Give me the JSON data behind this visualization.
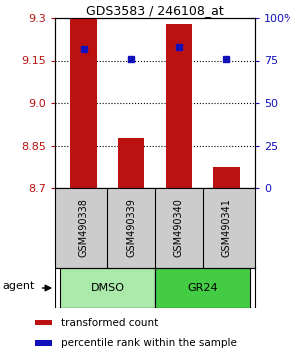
{
  "title": "GDS3583 / 246108_at",
  "samples": [
    "GSM490338",
    "GSM490339",
    "GSM490340",
    "GSM490341"
  ],
  "groups": [
    "DMSO",
    "DMSO",
    "GR24",
    "GR24"
  ],
  "group_labels": [
    "DMSO",
    "GR24"
  ],
  "group_colors": [
    "#aaeaaa",
    "#44cc44"
  ],
  "bar_values": [
    9.295,
    8.875,
    9.28,
    8.775
  ],
  "percentile_values": [
    82,
    76,
    83,
    76
  ],
  "y_min": 8.7,
  "y_max": 9.3,
  "y_ticks": [
    8.7,
    8.85,
    9.0,
    9.15,
    9.3
  ],
  "y2_ticks": [
    0,
    25,
    50,
    75,
    100
  ],
  "bar_color": "#bb1111",
  "percentile_color": "#1111bb",
  "grid_color": "#666666",
  "bg_color": "#ffffff",
  "plot_bg": "#ffffff",
  "label_area_color": "#cccccc",
  "legend_red_label": "transformed count",
  "legend_blue_label": "percentile rank within the sample",
  "agent_label": "agent",
  "figsize": [
    2.9,
    3.54
  ],
  "dpi": 100
}
